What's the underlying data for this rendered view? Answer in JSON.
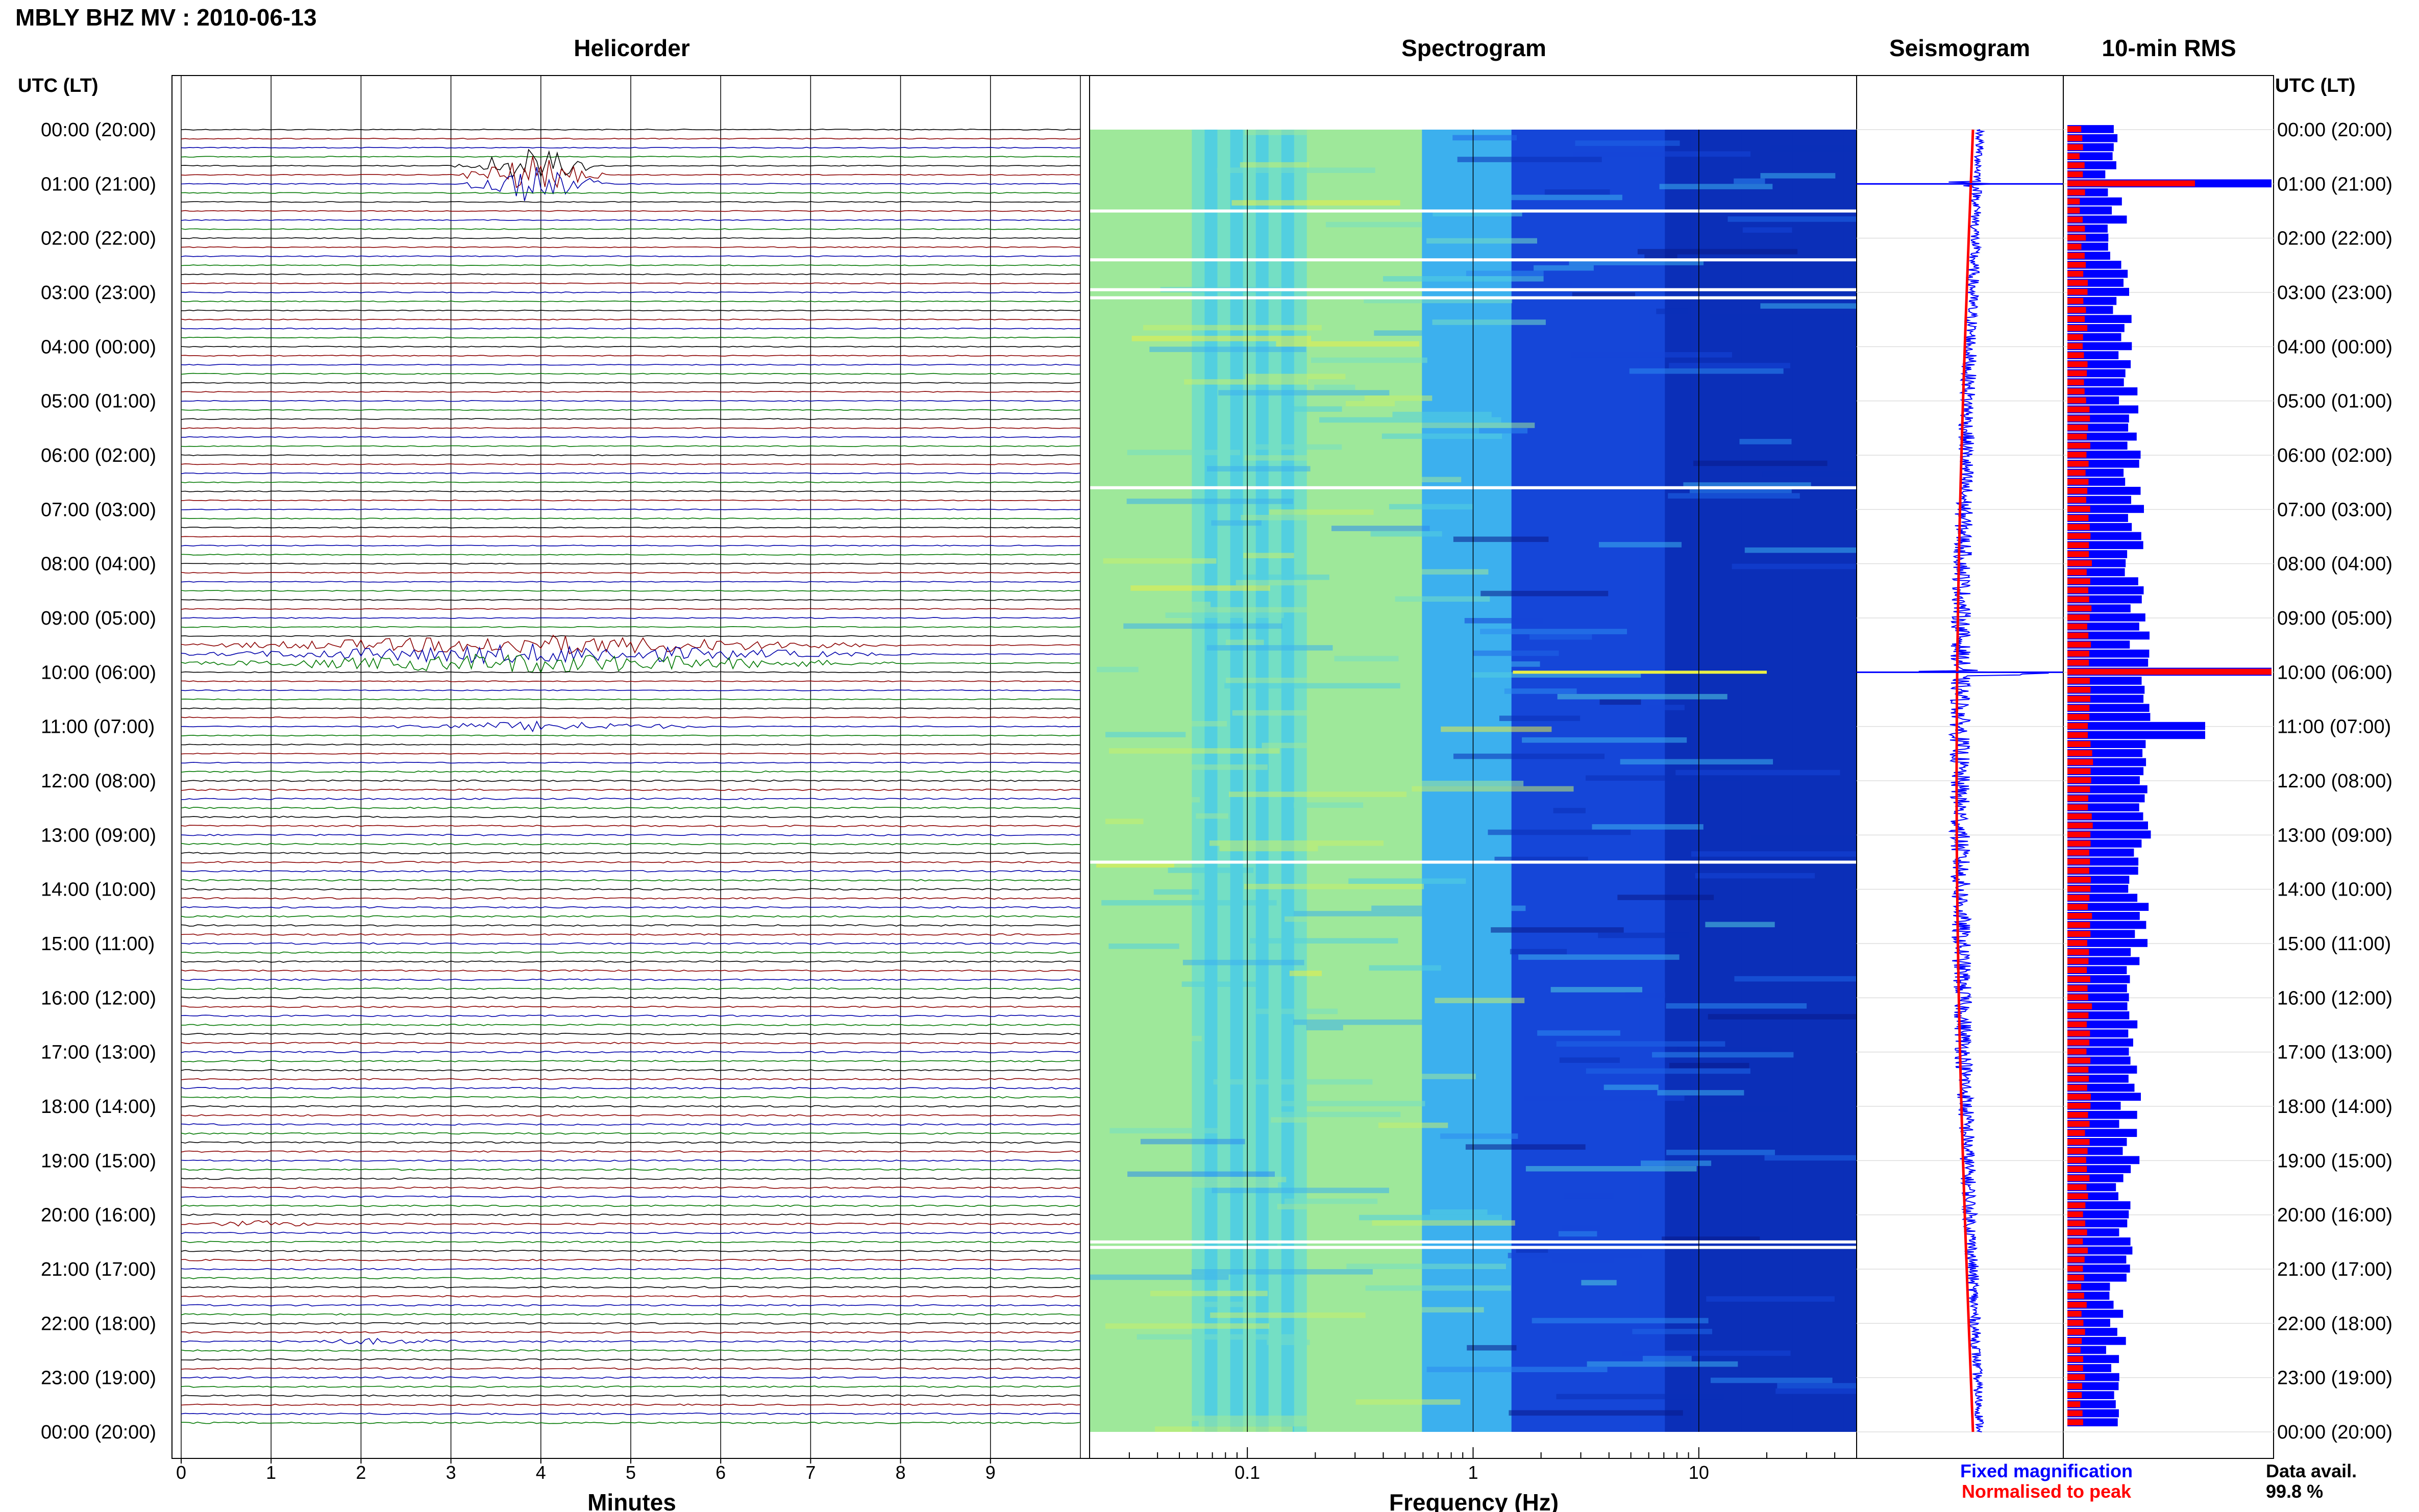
{
  "header": {
    "title": "MBLY BHZ MV : 2010-06-13",
    "left_axis_label": "UTC (LT)",
    "right_axis_label": "UTC (LT)"
  },
  "panels": {
    "helicorder": "Helicorder",
    "spectrogram": "Spectrogram",
    "seismogram": "Seismogram",
    "rms": "10-min RMS"
  },
  "time_labels": [
    "00:00 (20:00)",
    "01:00 (21:00)",
    "02:00 (22:00)",
    "03:00 (23:00)",
    "04:00 (00:00)",
    "05:00 (01:00)",
    "06:00 (02:00)",
    "07:00 (03:00)",
    "08:00 (04:00)",
    "09:00 (05:00)",
    "10:00 (06:00)",
    "11:00 (07:00)",
    "12:00 (08:00)",
    "13:00 (09:00)",
    "14:00 (10:00)",
    "15:00 (11:00)",
    "16:00 (12:00)",
    "17:00 (13:00)",
    "18:00 (14:00)",
    "19:00 (15:00)",
    "20:00 (16:00)",
    "21:00 (17:00)",
    "22:00 (18:00)",
    "23:00 (19:00)",
    "00:00 (20:00)"
  ],
  "footer": {
    "fixed_magnification": "Fixed magnification",
    "normalised_to_peak": "Normalised to peak",
    "data_avail_label": "Data avail.",
    "data_avail_value": "99.8 %"
  },
  "colors": {
    "trace_cycle": [
      "#000000",
      "#8b0000",
      "#0000aa",
      "#007700"
    ],
    "rms_fixed": "#0000ff",
    "rms_normalised": "#ff0000"
  },
  "chart_data": [
    {
      "type": "line",
      "name": "helicorder",
      "title": "Helicorder",
      "xlabel": "Minutes",
      "x_ticks": [
        "0",
        "1",
        "2",
        "3",
        "4",
        "5",
        "6",
        "7",
        "8",
        "9"
      ],
      "xlim": [
        0,
        10
      ],
      "rows": 144,
      "row_minutes": 10,
      "events": [
        {
          "hour": 0.95,
          "minute": 3.9,
          "amp": 9,
          "dur": 0.9,
          "color_idx": 1
        },
        {
          "hour": 9.8,
          "minute": 4.0,
          "amp": 5,
          "dur": 4.2,
          "color_idx": 3
        },
        {
          "hour": 11.0,
          "minute": 4.0,
          "amp": 2.5,
          "dur": 2.0,
          "color_idx": 3
        },
        {
          "hour": 22.4,
          "minute": 2.1,
          "amp": 1.2,
          "dur": 1.2,
          "color_idx": 3
        },
        {
          "hour": 20.3,
          "minute": 0.9,
          "amp": 1.3,
          "dur": 0.8,
          "color_idx": 2
        }
      ]
    },
    {
      "type": "heatmap",
      "name": "spectrogram",
      "title": "Spectrogram",
      "xlabel": "Frequency (Hz)",
      "x_scale": "log",
      "xlim": [
        0.02,
        50
      ],
      "x_ticks": [
        "0.1",
        "1",
        "10"
      ],
      "gap_rows_hours": [
        1.5,
        2.4,
        2.95,
        3.1,
        6.6,
        13.5,
        20.5,
        20.6
      ],
      "event_lines": [
        {
          "hour": 10.0,
          "fmin": 1.5,
          "fmax": 20
        }
      ]
    },
    {
      "type": "line",
      "name": "seismogram",
      "title": "Seismogram",
      "series": [
        {
          "name": "Fixed magnification",
          "color": "#0000ff"
        },
        {
          "name": "Normalised to peak",
          "color": "#ff0000"
        }
      ]
    },
    {
      "type": "bar",
      "name": "rms",
      "title": "10-min RMS",
      "orientation": "horizontal",
      "interval_minutes": 10,
      "spikes_hours": [
        1.0,
        10.0,
        11.1
      ]
    }
  ]
}
